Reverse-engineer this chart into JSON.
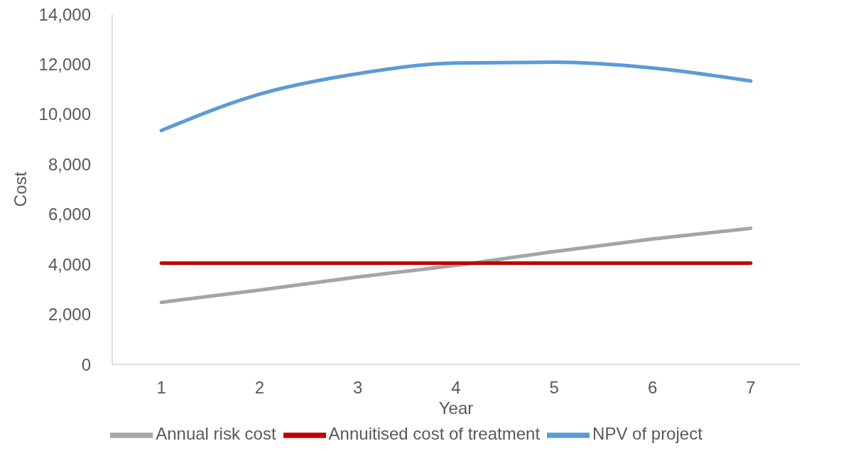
{
  "chart_data": {
    "type": "line",
    "xlabel": "Year",
    "ylabel": "Cost",
    "categories": [
      "1",
      "2",
      "3",
      "4",
      "5",
      "6",
      "7"
    ],
    "series": [
      {
        "name": "Annual risk cost",
        "color": "#a5a5a5",
        "values": [
          2480,
          2970,
          3490,
          3960,
          4510,
          5010,
          5440
        ]
      },
      {
        "name": "Annuitised cost of treatment",
        "color": "#c00000",
        "values": [
          4050,
          4050,
          4050,
          4050,
          4050,
          4050,
          4050
        ]
      },
      {
        "name": "NPV of project",
        "color": "#5b9bd5",
        "values": [
          9350,
          10800,
          11620,
          12050,
          12080,
          11850,
          11330
        ]
      }
    ],
    "ylim": [
      0,
      14000
    ],
    "yticks": [
      {
        "value": 0,
        "label": "0"
      },
      {
        "value": 2000,
        "label": "2,000"
      },
      {
        "value": 4000,
        "label": "4,000"
      },
      {
        "value": 6000,
        "label": "6,000"
      },
      {
        "value": 8000,
        "label": "8,000"
      },
      {
        "value": 10000,
        "label": "10,000"
      },
      {
        "value": 12000,
        "label": "12,000"
      },
      {
        "value": 14000,
        "label": "14,000"
      }
    ],
    "grid": false,
    "legend": "bottom",
    "marker": "none",
    "line_style": "solid"
  }
}
